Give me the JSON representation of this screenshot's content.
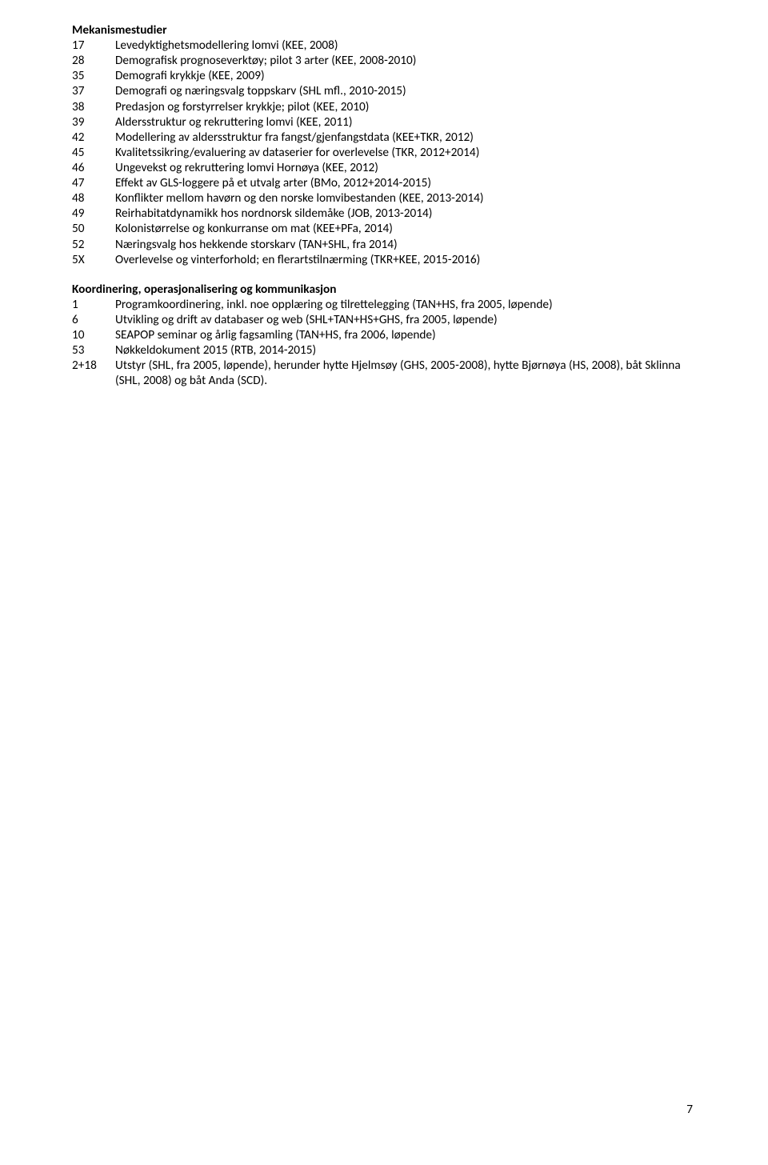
{
  "sections": [
    {
      "title": "Mekanismestudier",
      "gapBefore": false,
      "entries": [
        {
          "num": "17",
          "text": "Levedyktighetsmodellering lomvi (KEE, 2008)"
        },
        {
          "num": "28",
          "text": "Demografisk prognoseverktøy; pilot 3 arter (KEE, 2008-2010)"
        },
        {
          "num": "35",
          "text": "Demografi krykkje (KEE, 2009)"
        },
        {
          "num": "37",
          "text": "Demografi og næringsvalg toppskarv (SHL mfl., 2010-2015)"
        },
        {
          "num": "38",
          "text": "Predasjon og forstyrrelser krykkje; pilot (KEE, 2010)"
        },
        {
          "num": "39",
          "text": "Aldersstruktur og rekruttering lomvi (KEE, 2011)"
        },
        {
          "num": "42",
          "text": "Modellering av aldersstruktur fra fangst/gjenfangstdata (KEE+TKR, 2012)"
        },
        {
          "num": "45",
          "text": "Kvalitetssikring/evaluering av dataserier for overlevelse (TKR, 2012+2014)"
        },
        {
          "num": "46",
          "text": "Ungevekst og rekruttering lomvi Hornøya (KEE, 2012)"
        },
        {
          "num": "47",
          "text": "Effekt av GLS-loggere på et utvalg arter (BMo, 2012+2014-2015)"
        },
        {
          "num": "48",
          "text": "Konflikter mellom havørn og den norske lomvibestanden (KEE, 2013-2014)"
        },
        {
          "num": "49",
          "text": "Reirhabitatdynamikk hos nordnorsk sildemåke (JOB, 2013-2014)"
        },
        {
          "num": "50",
          "text": "Kolonistørrelse og konkurranse om mat (KEE+PFa, 2014)"
        },
        {
          "num": "52",
          "text": "Næringsvalg hos hekkende storskarv (TAN+SHL, fra 2014)"
        },
        {
          "num": "5X",
          "text": "Overlevelse og vinterforhold; en flerartstilnærming (TKR+KEE, 2015-2016)"
        }
      ]
    },
    {
      "title": "Koordinering, operasjonalisering og kommunikasjon",
      "gapBefore": true,
      "entries": [
        {
          "num": "1",
          "text": "Programkoordinering, inkl. noe opplæring og tilrettelegging (TAN+HS, fra 2005, løpende)"
        },
        {
          "num": "6",
          "text": "Utvikling og drift av databaser og web (SHL+TAN+HS+GHS, fra 2005, løpende)"
        },
        {
          "num": "10",
          "text": "SEAPOP seminar og årlig fagsamling (TAN+HS, fra 2006, løpende)"
        },
        {
          "num": "53",
          "text": "Nøkkeldokument 2015 (RTB, 2014-2015)"
        },
        {
          "num": "2+18",
          "text": "Utstyr (SHL, fra 2005, løpende), herunder hytte Hjelmsøy (GHS, 2005-2008), hytte Bjørnøya (HS, 2008), båt Sklinna (SHL, 2008) og båt Anda (SCD)."
        }
      ]
    }
  ],
  "pageNumber": "7"
}
